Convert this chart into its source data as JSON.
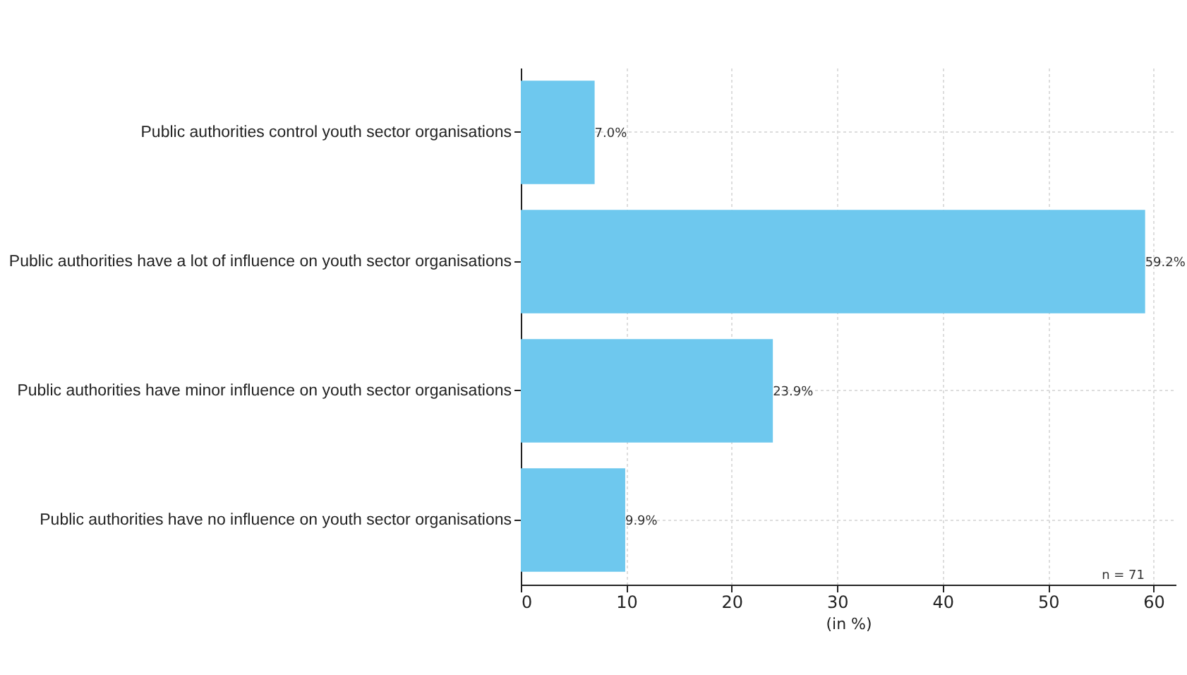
{
  "chart_data": {
    "type": "bar",
    "orientation": "horizontal",
    "xlabel": "(in %)",
    "categories": [
      "Public authorities control youth sector organisations",
      "Public authorities have a lot of influence on youth sector organisations",
      "Public authorities have minor influence on youth sector organisations",
      "Public authorities have no influence on youth sector organisations"
    ],
    "values": [
      7.0,
      59.2,
      23.9,
      9.9
    ],
    "color": "#6ec8ee",
    "value_labels": [
      "7.0%",
      "59.2%",
      "23.9%",
      "9.9%"
    ],
    "xlim": [
      0,
      62.1
    ],
    "xticks": [
      0,
      10,
      20,
      30,
      40,
      50,
      60
    ],
    "grid": true,
    "annotations": [
      "n = 71"
    ]
  }
}
